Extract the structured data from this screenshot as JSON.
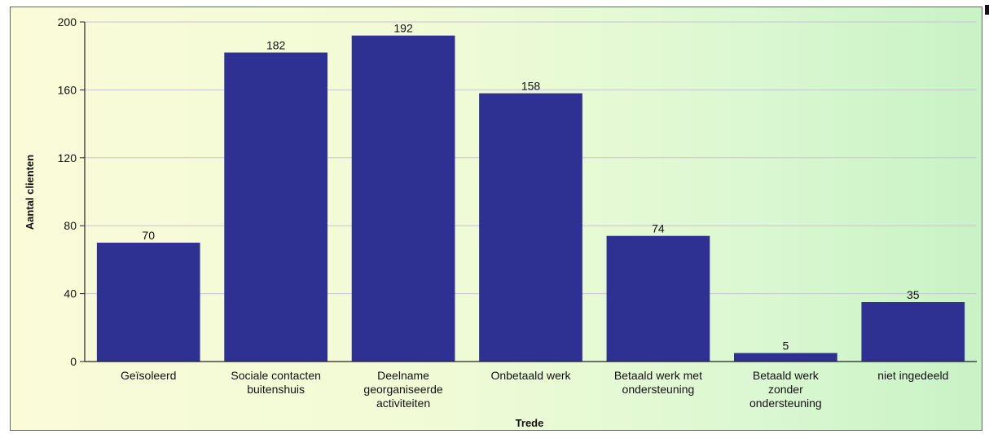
{
  "chart_data": {
    "type": "bar",
    "xlabel": "Trede",
    "ylabel": "Aantal clienten",
    "ylim": [
      0,
      200
    ],
    "yticks": [
      0,
      40,
      80,
      120,
      160,
      200
    ],
    "grid": true,
    "categories": [
      [
        "Geïsoleerd"
      ],
      [
        "Sociale contacten",
        "buitenshuis"
      ],
      [
        "Deelname",
        "georganiseerde",
        "activiteiten"
      ],
      [
        "Onbetaald werk"
      ],
      [
        "Betaald werk met",
        "ondersteuning"
      ],
      [
        "Betaald werk",
        "zonder",
        "ondersteuning"
      ],
      [
        "niet ingedeeld"
      ]
    ],
    "values": [
      70,
      182,
      192,
      158,
      74,
      5,
      35
    ],
    "bar_color": "#2e3192",
    "grid_color": "#c9c3d6",
    "axis_color": "#222222"
  }
}
